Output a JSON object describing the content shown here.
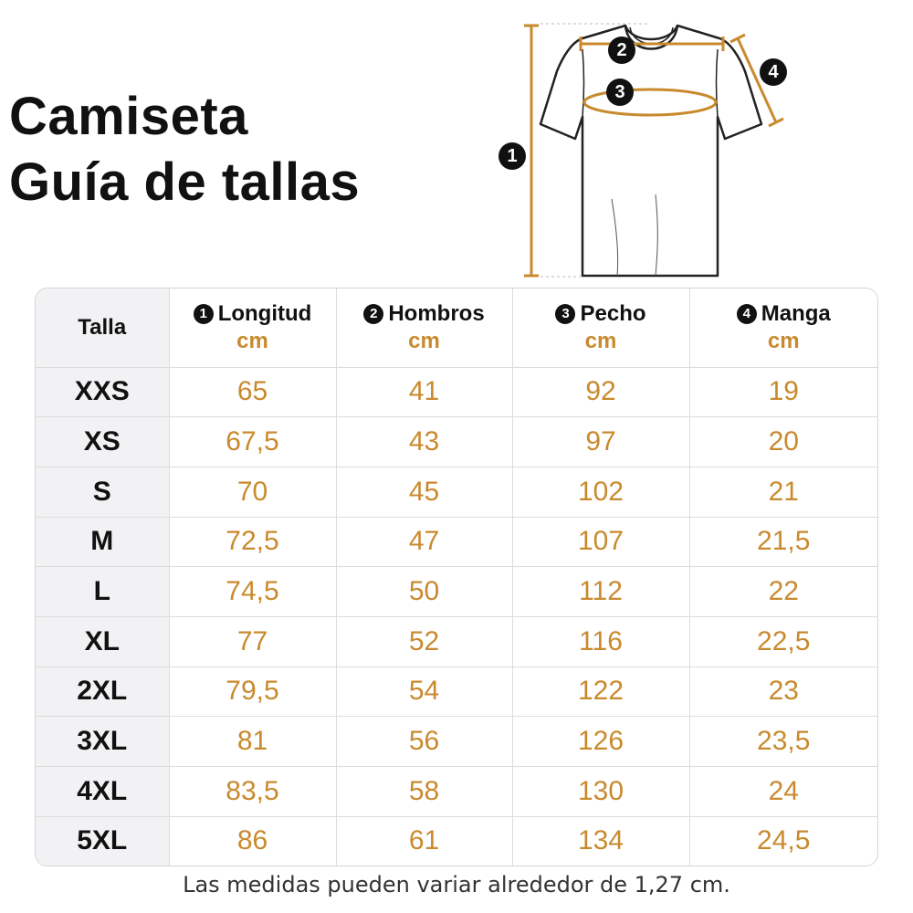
{
  "title": {
    "line1": "Camiseta",
    "line2": "Guía de tallas"
  },
  "diagram": {
    "markers": [
      "1",
      "2",
      "3",
      "4"
    ],
    "accent_color": "#c98a2e"
  },
  "table": {
    "size_header": "Talla",
    "columns": [
      {
        "number": "1",
        "name": "Longitud",
        "unit": "cm"
      },
      {
        "number": "2",
        "name": "Hombros",
        "unit": "cm"
      },
      {
        "number": "3",
        "name": "Pecho",
        "unit": "cm"
      },
      {
        "number": "4",
        "name": "Manga",
        "unit": "cm"
      }
    ],
    "rows": [
      {
        "size": "XXS",
        "values": [
          "65",
          "41",
          "92",
          "19"
        ]
      },
      {
        "size": "XS",
        "values": [
          "67,5",
          "43",
          "97",
          "20"
        ]
      },
      {
        "size": "S",
        "values": [
          "70",
          "45",
          "102",
          "21"
        ]
      },
      {
        "size": "M",
        "values": [
          "72,5",
          "47",
          "107",
          "21,5"
        ]
      },
      {
        "size": "L",
        "values": [
          "74,5",
          "50",
          "112",
          "22"
        ]
      },
      {
        "size": "XL",
        "values": [
          "77",
          "52",
          "116",
          "22,5"
        ]
      },
      {
        "size": "2XL",
        "values": [
          "79,5",
          "54",
          "122",
          "23"
        ]
      },
      {
        "size": "3XL",
        "values": [
          "81",
          "56",
          "126",
          "23,5"
        ]
      },
      {
        "size": "4XL",
        "values": [
          "83,5",
          "58",
          "130",
          "24"
        ]
      },
      {
        "size": "5XL",
        "values": [
          "86",
          "61",
          "134",
          "24,5"
        ]
      }
    ]
  },
  "footnote": "Las medidas pueden variar alrededor de 1,27 cm."
}
